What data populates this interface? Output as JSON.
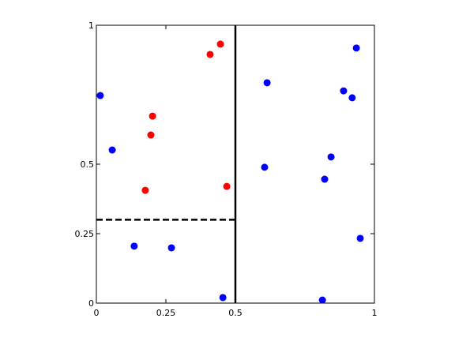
{
  "chart_data": {
    "type": "scatter",
    "xlim": [
      0,
      1
    ],
    "ylim": [
      0,
      1
    ],
    "xticks": [
      0,
      0.25,
      0.5,
      1
    ],
    "yticks": [
      0,
      0.25,
      0.5,
      1
    ],
    "series": [
      {
        "color": "#ff0000",
        "x": [
          0.446,
          0.409,
          0.202,
          0.196,
          0.176,
          0.469
        ],
        "y": [
          0.932,
          0.895,
          0.673,
          0.605,
          0.406,
          0.42
        ]
      },
      {
        "color": "#0000ff",
        "x": [
          0.014,
          0.057,
          0.136,
          0.27,
          0.455,
          0.614,
          0.605,
          0.935,
          0.889,
          0.92,
          0.844,
          0.821,
          0.949,
          0.813
        ],
        "y": [
          0.747,
          0.551,
          0.205,
          0.199,
          0.02,
          0.793,
          0.489,
          0.918,
          0.764,
          0.739,
          0.526,
          0.446,
          0.233,
          0.011
        ]
      }
    ],
    "lines": [
      {
        "x": [
          0.5,
          0.5
        ],
        "y": [
          0,
          1
        ],
        "style": "solid",
        "color": "#000000"
      },
      {
        "x": [
          0,
          0.5
        ],
        "y": [
          0.3,
          0.3
        ],
        "style": "dashed",
        "color": "#000000"
      }
    ]
  }
}
